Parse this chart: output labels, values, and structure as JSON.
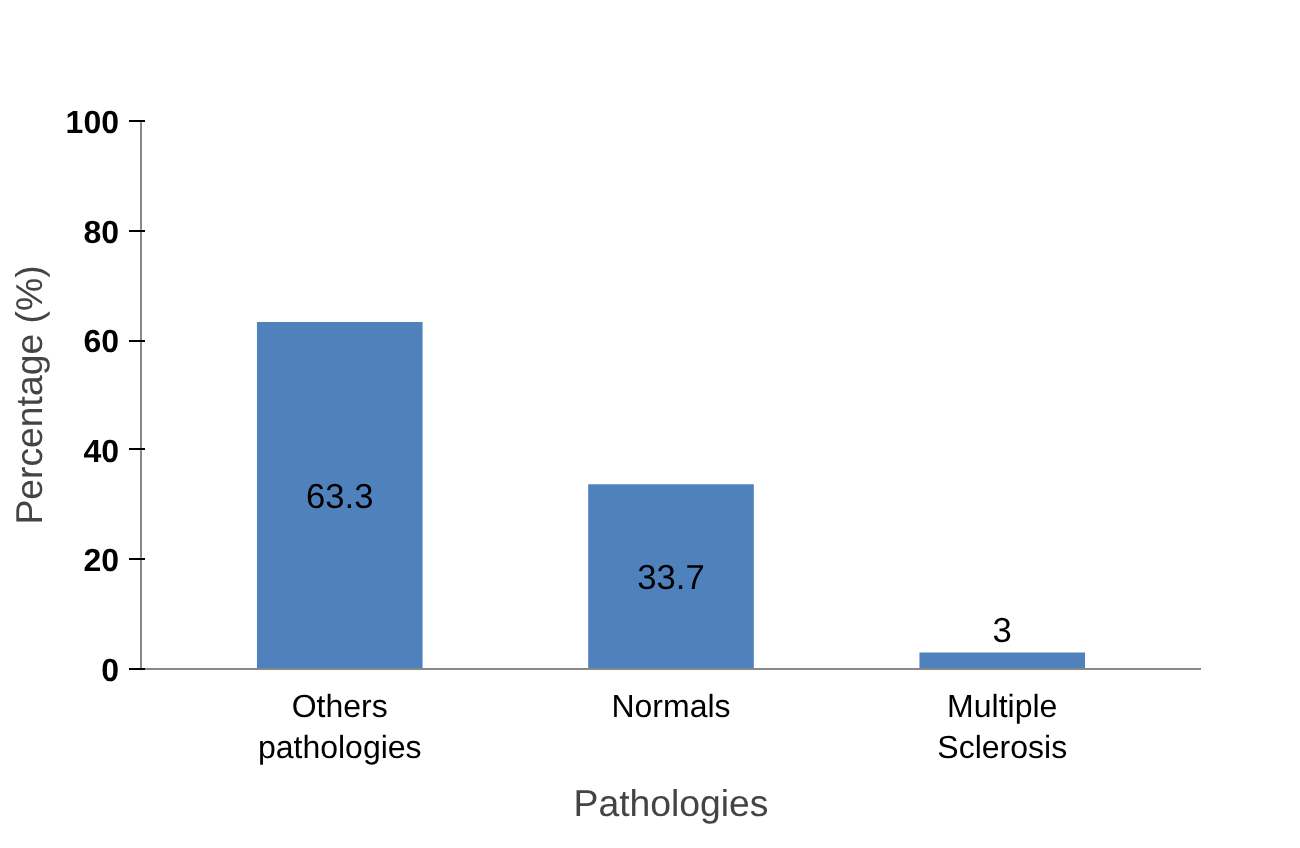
{
  "chart_data": {
    "type": "bar",
    "xlabel": "Pathologies",
    "ylabel": "Percentage (%)",
    "categories": [
      "Others pathologies",
      "Normals",
      "Multiple Sclerosis"
    ],
    "values": [
      63.3,
      33.7,
      3
    ],
    "color": "#4f81bd",
    "ylim": [
      0,
      100
    ],
    "yticks": [
      0,
      20,
      40,
      60,
      80,
      100
    ],
    "grid": false,
    "data_labels": true
  }
}
